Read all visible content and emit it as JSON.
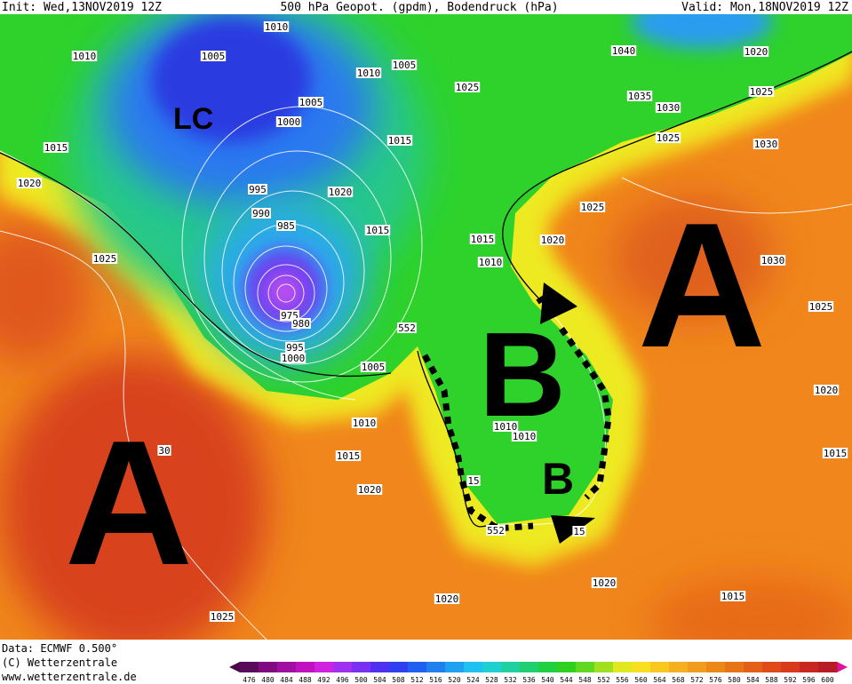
{
  "header": {
    "init": "Init: Wed,13NOV2019 12Z",
    "title": "500 hPa Geopot. (gpdm), Bodendruck (hPa)",
    "valid": "Valid: Mon,18NOV2019 12Z"
  },
  "footer": {
    "data": "Data: ECMWF  0.500°",
    "copyright": "(C) Wetterzentrale",
    "url": "www.wetterzentrale.de"
  },
  "annotations": [
    "LC",
    "A",
    "A",
    "B",
    "B"
  ],
  "isobar_labels": [
    "1010",
    "1010",
    "1005",
    "1010",
    "1005",
    "1040",
    "1020",
    "1025",
    "1005",
    "1035",
    "1030",
    "1025",
    "1000",
    "1015",
    "1015",
    "1025",
    "1030",
    "1020",
    "995",
    "1020",
    "990",
    "985",
    "1025",
    "1015",
    "1015",
    "1020",
    "1010",
    "1025",
    "1030",
    "975",
    "980",
    "1025",
    "552",
    "995",
    "1000",
    "1005",
    "1020",
    "1010",
    "1010",
    "1010",
    "1015",
    "30",
    "1015",
    "1020",
    "15",
    "552",
    "15",
    "1020",
    "1020",
    "1015",
    "1025"
  ],
  "colorbar": [
    476,
    480,
    484,
    488,
    492,
    496,
    500,
    504,
    508,
    512,
    516,
    520,
    524,
    528,
    532,
    536,
    540,
    544,
    548,
    552,
    556,
    560,
    564,
    568,
    572,
    576,
    580,
    584,
    588,
    592,
    596,
    600
  ]
}
